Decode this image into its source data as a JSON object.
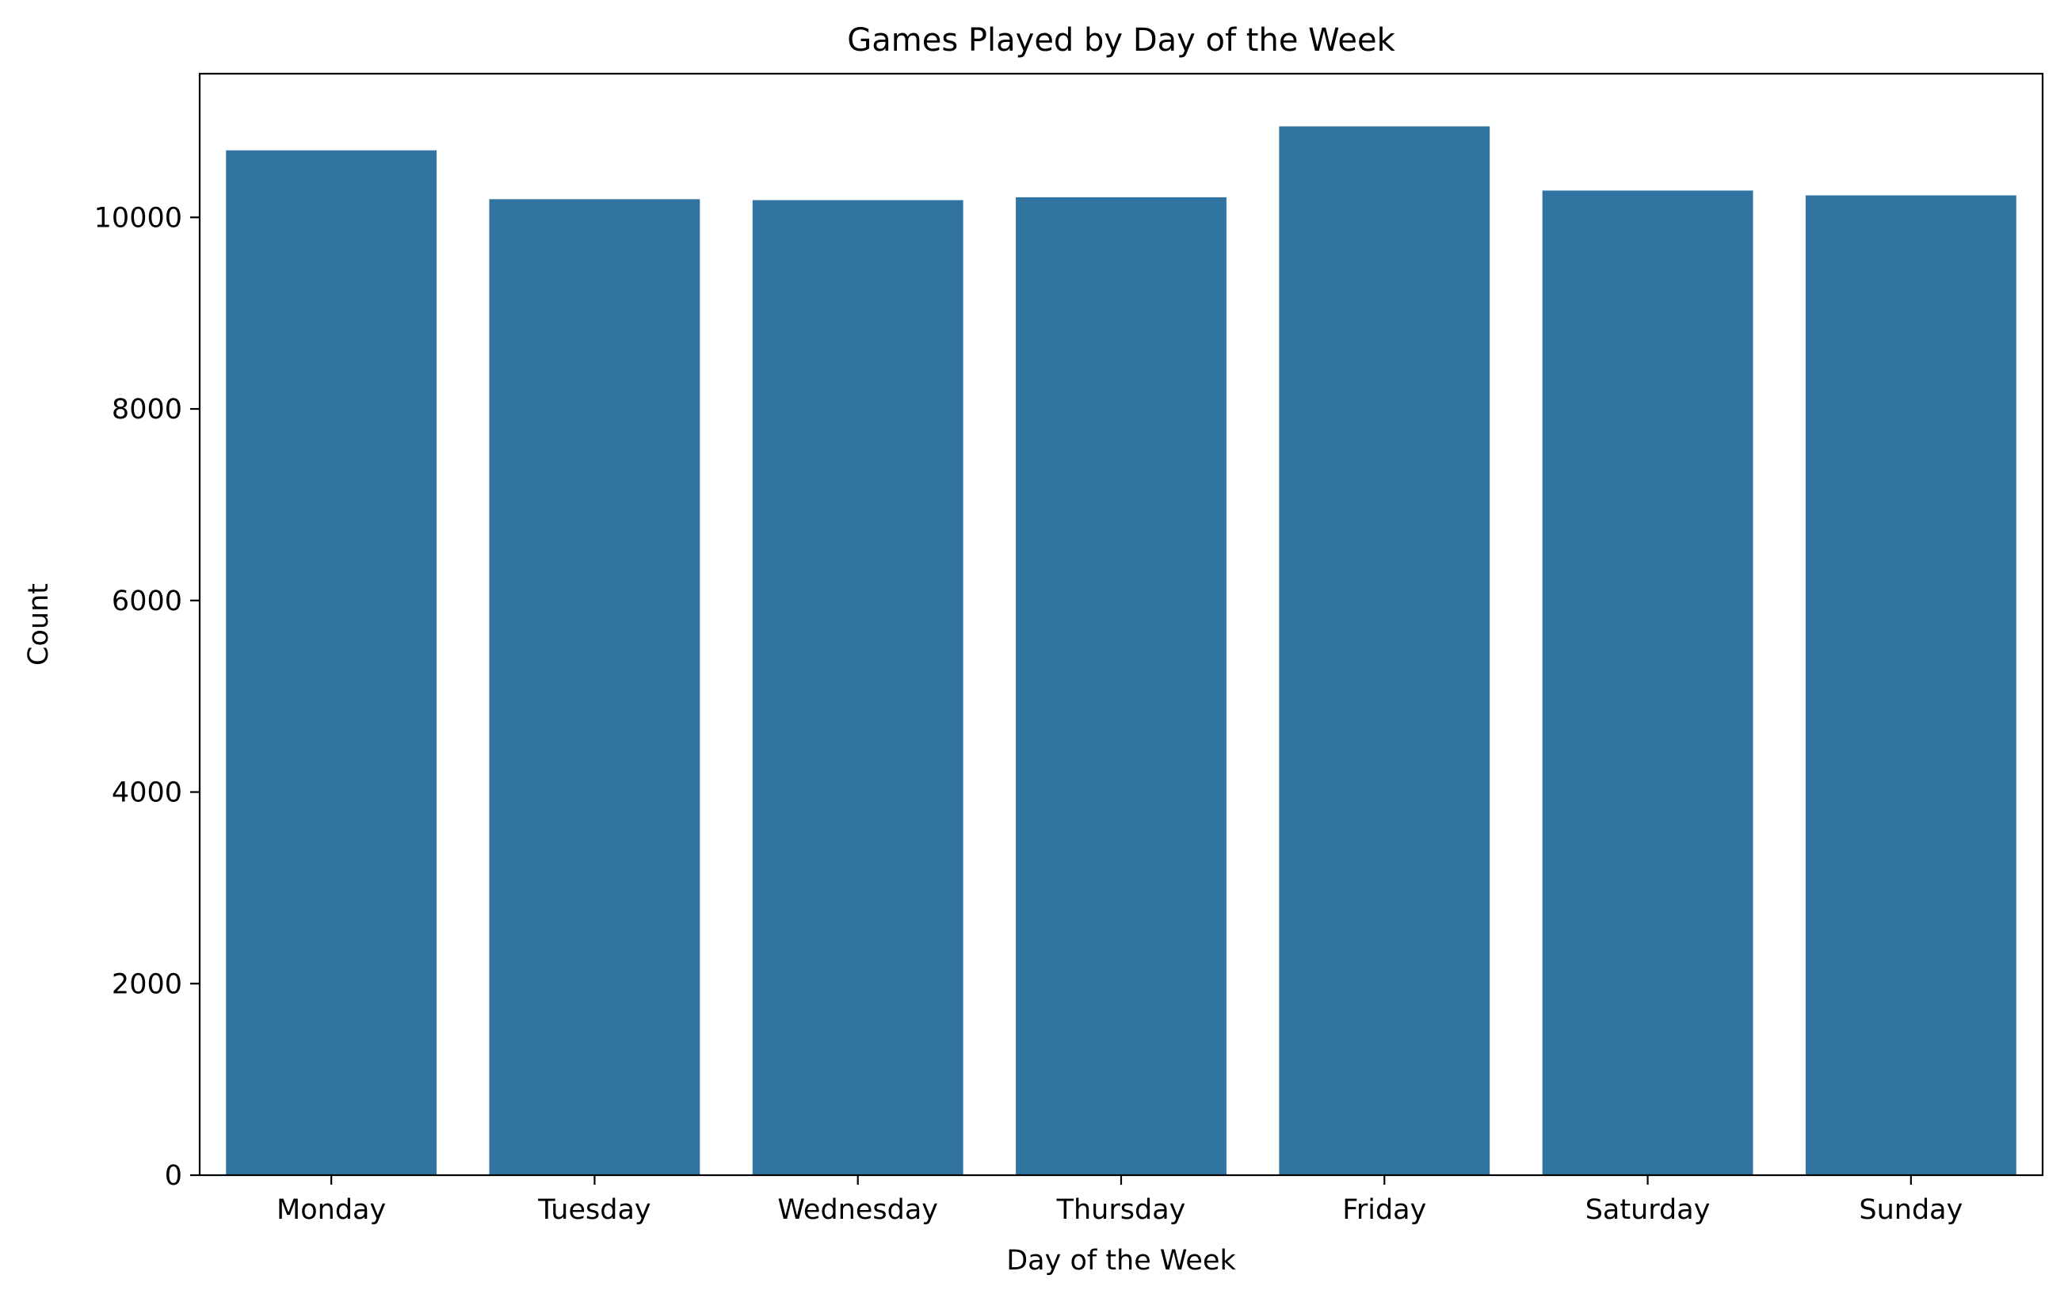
{
  "chart_data": {
    "type": "bar",
    "title": "Games Played by Day of the Week",
    "xlabel": "Day of the Week",
    "ylabel": "Count",
    "categories": [
      "Monday",
      "Tuesday",
      "Wednesday",
      "Thursday",
      "Friday",
      "Saturday",
      "Sunday"
    ],
    "values": [
      10700,
      10190,
      10180,
      10210,
      10950,
      10280,
      10230
    ],
    "ylim": [
      0,
      11500
    ],
    "yticks": [
      0,
      2000,
      4000,
      6000,
      8000,
      10000
    ],
    "ytick_labels": [
      "0",
      "2000",
      "4000",
      "6000",
      "8000",
      "10000"
    ],
    "bar_color": "#3274a1",
    "grid": false,
    "legend": "none"
  }
}
